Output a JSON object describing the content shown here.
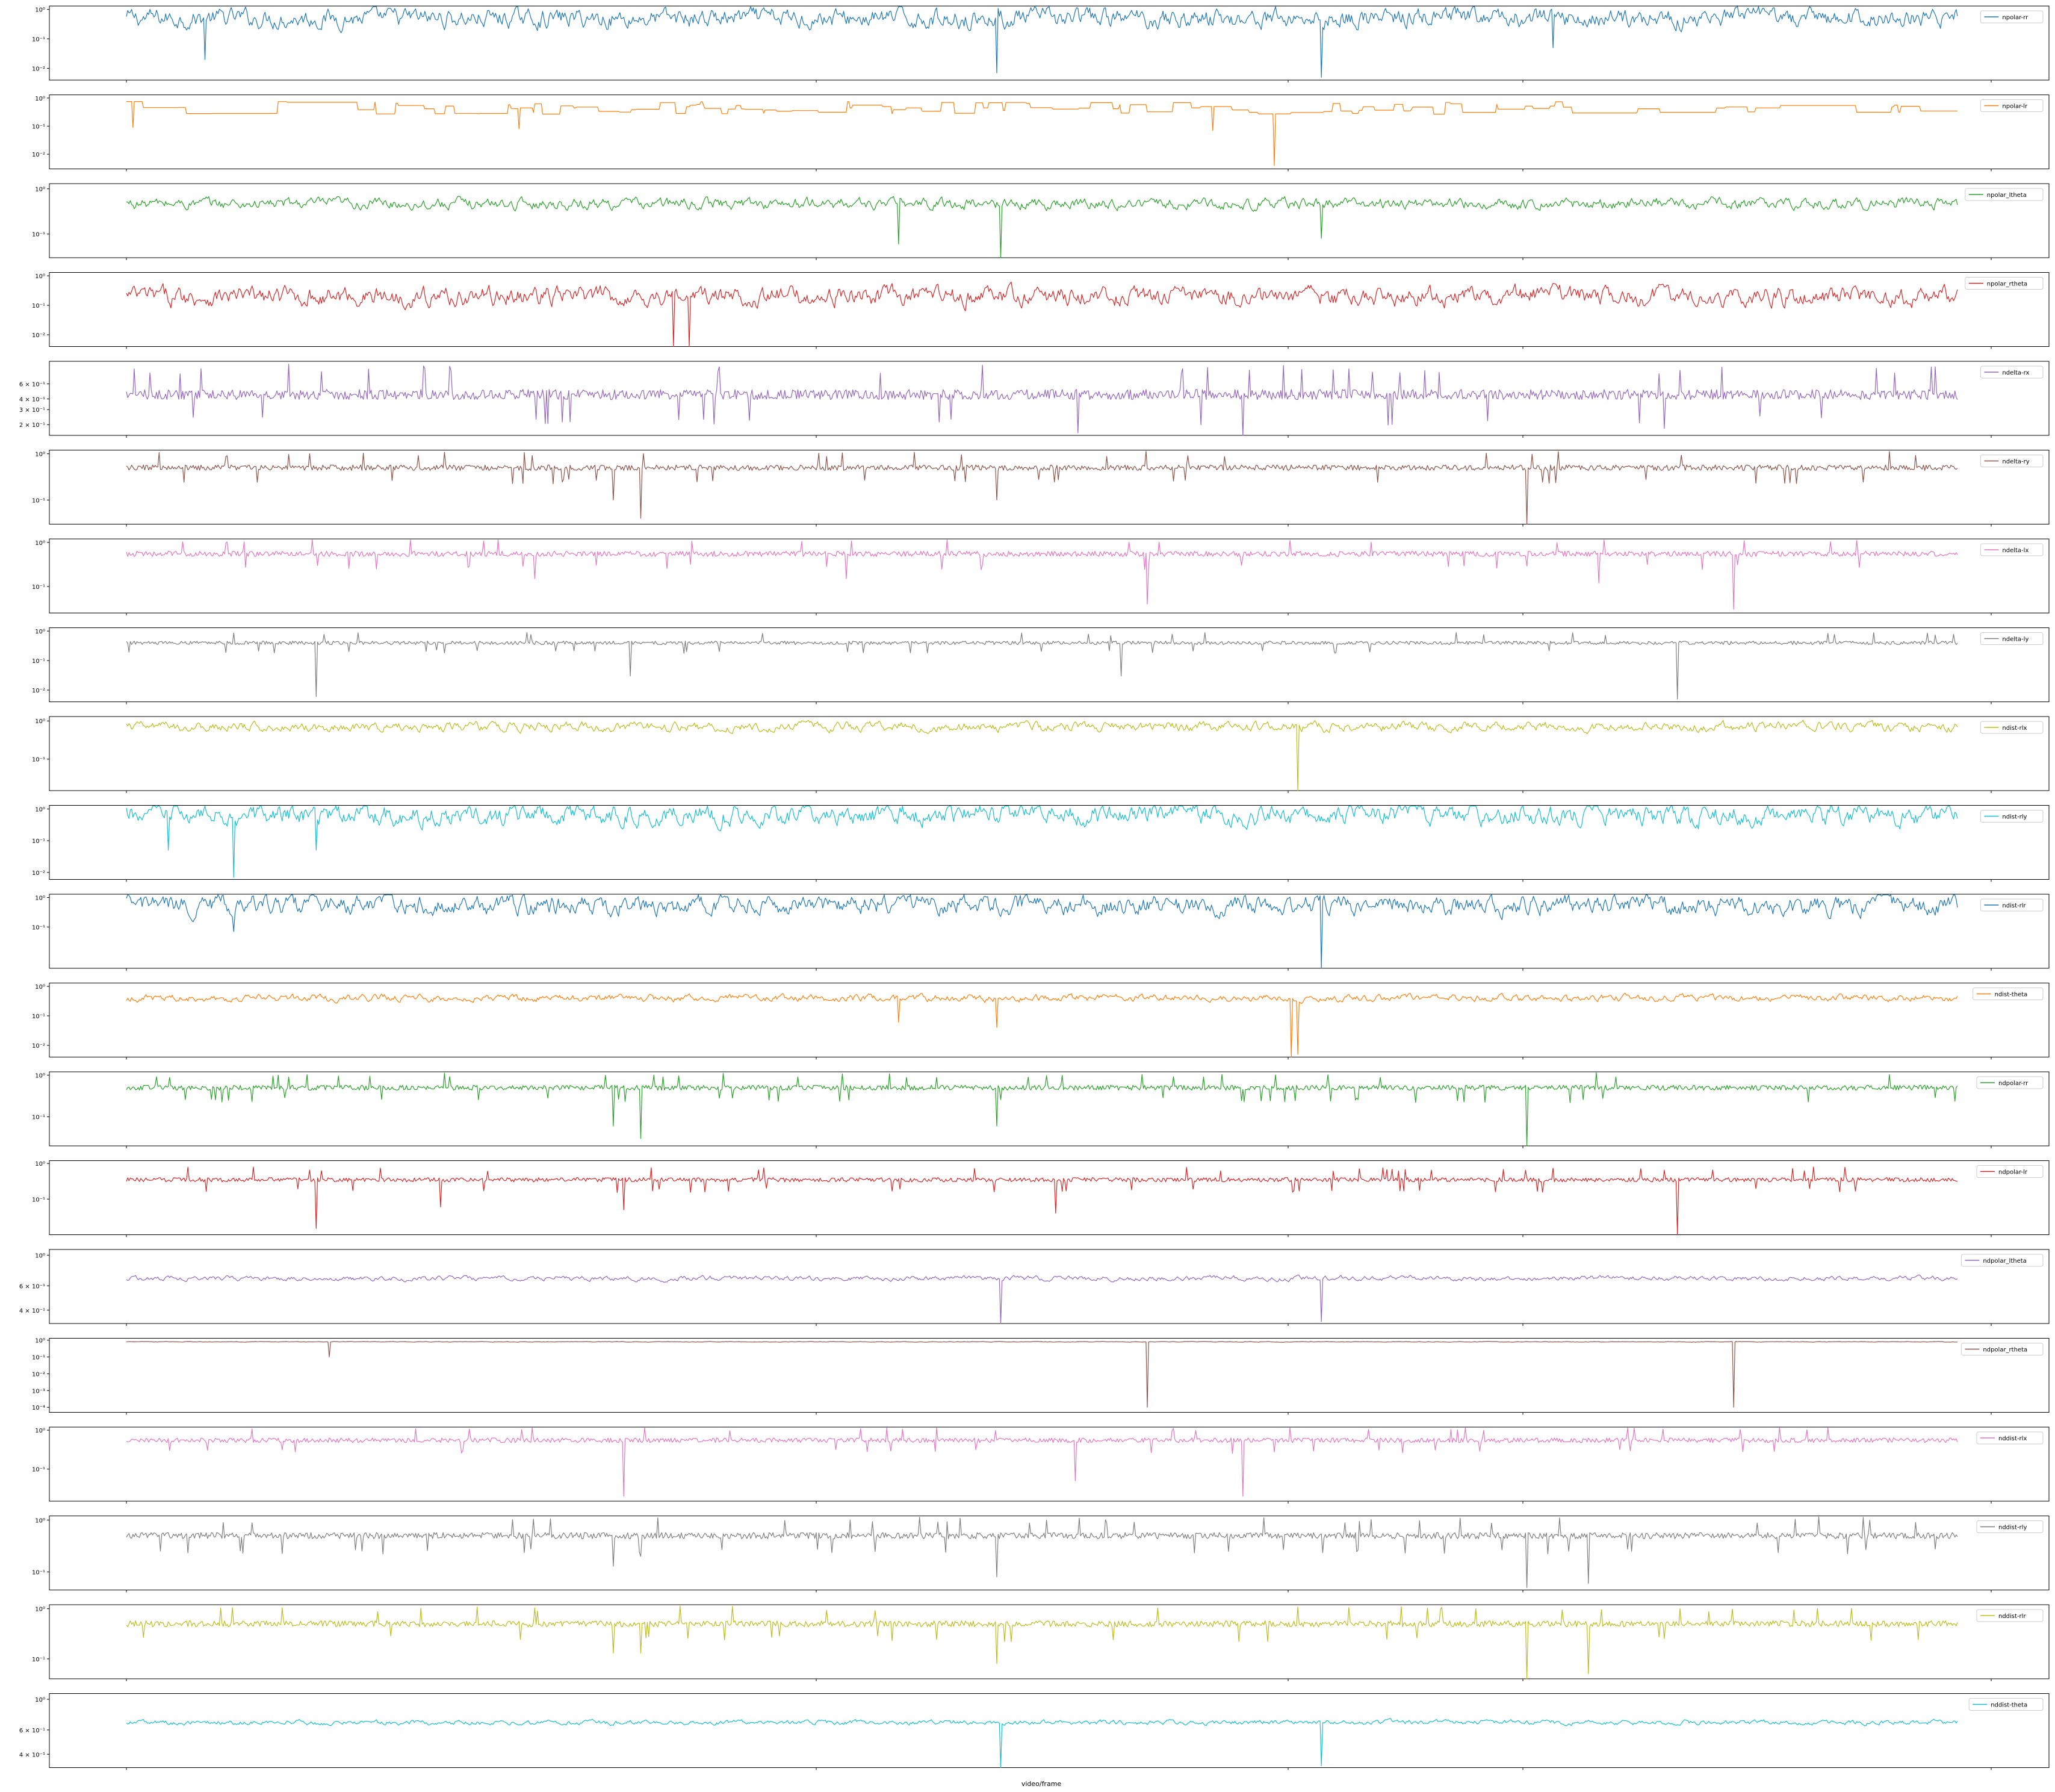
{
  "figure": {
    "xlabel": "video/frame",
    "frames": 1400,
    "scale": "log"
  },
  "chart_data": [
    {
      "type": "line",
      "series": [
        {
          "name": "npolar-rr",
          "color": "#1f77b4",
          "base": 0.5,
          "noise": "heavy",
          "dips": [
            [
              60,
              0.02
            ],
            [
              665,
              0.007
            ],
            [
              913,
              0.005
            ],
            [
              1090,
              0.05
            ]
          ]
        }
      ],
      "y_ticks": [
        "10⁰",
        "10⁻¹",
        "10⁻²"
      ],
      "y_tick_values": [
        1,
        0.1,
        0.01
      ],
      "ylim": [
        0.004,
        1.3
      ],
      "grid": false,
      "legend": "top-right"
    },
    {
      "type": "line",
      "series": [
        {
          "name": "npolar-lr",
          "color": "#ff7f0e",
          "base": 0.75,
          "noise": "step",
          "dips": [
            [
              5,
              0.09
            ],
            [
              300,
              0.08
            ],
            [
              830,
              0.07
            ],
            [
              877,
              0.004
            ]
          ]
        }
      ],
      "y_ticks": [
        "10⁰",
        "10⁻¹",
        "10⁻²"
      ],
      "y_tick_values": [
        1,
        0.1,
        0.01
      ],
      "ylim": [
        0.003,
        1.3
      ],
      "grid": false,
      "legend": "top-right"
    },
    {
      "type": "line",
      "series": [
        {
          "name": "npolar_ltheta",
          "color": "#2ca02c",
          "base": 0.47,
          "noise": "medium",
          "dips": [
            [
              590,
              0.06
            ],
            [
              668,
              0.03
            ],
            [
              913,
              0.08
            ]
          ]
        }
      ],
      "y_ticks": [
        "10⁰",
        "10⁻¹"
      ],
      "y_tick_values": [
        1,
        0.1
      ],
      "ylim": [
        0.03,
        1.3
      ],
      "grid": false,
      "legend": "top-right"
    },
    {
      "type": "line",
      "series": [
        {
          "name": "npolar_rtheta",
          "color": "#d62728",
          "base": 0.2,
          "noise": "heavy",
          "dips": [
            [
              418,
              0.004
            ],
            [
              430,
              0.004
            ]
          ]
        }
      ],
      "y_ticks": [
        "10⁰",
        "10⁻¹",
        "10⁻²"
      ],
      "y_tick_values": [
        1,
        0.1,
        0.01
      ],
      "ylim": [
        0.004,
        1.3
      ],
      "grid": false,
      "legend": "top-right"
    },
    {
      "type": "line",
      "series": [
        {
          "name": "ndelta-rx",
          "color": "#9467bd",
          "base": 0.45,
          "noise": "spiky",
          "dips": [
            [
              727,
              0.16
            ],
            [
              853,
              0.15
            ],
            [
              1175,
              0.18
            ]
          ]
        }
      ],
      "y_ticks": [
        "6 × 10⁻¹",
        "4 × 10⁻¹",
        "3 × 10⁻¹",
        "2 × 10⁻¹"
      ],
      "y_tick_values": [
        0.6,
        0.4,
        0.3,
        0.2
      ],
      "ylim": [
        0.15,
        1.1
      ],
      "grid": false,
      "legend": "top-right"
    },
    {
      "type": "line",
      "series": [
        {
          "name": "ndelta-ry",
          "color": "#8c564b",
          "base": 0.5,
          "noise": "spiky",
          "dips": [
            [
              372,
              0.1
            ],
            [
              393,
              0.04
            ],
            [
              665,
              0.1
            ],
            [
              1070,
              0.03
            ]
          ]
        }
      ],
      "y_ticks": [
        "10⁰",
        "10⁻¹"
      ],
      "y_tick_values": [
        1,
        0.1
      ],
      "ylim": [
        0.03,
        1.2
      ],
      "grid": false,
      "legend": "top-right"
    },
    {
      "type": "line",
      "series": [
        {
          "name": "ndelta-lx",
          "color": "#e377c2",
          "base": 0.55,
          "noise": "spiky",
          "dips": [
            [
              312,
              0.15
            ],
            [
              550,
              0.15
            ],
            [
              780,
              0.04
            ],
            [
              1125,
              0.12
            ],
            [
              1228,
              0.03
            ]
          ]
        }
      ],
      "y_ticks": [
        "10⁰",
        "10⁻¹"
      ],
      "y_tick_values": [
        1,
        0.1
      ],
      "ylim": [
        0.025,
        1.2
      ],
      "grid": false,
      "legend": "top-right"
    },
    {
      "type": "line",
      "series": [
        {
          "name": "ndelta-ly",
          "color": "#7f7f7f",
          "base": 0.4,
          "noise": "spiky",
          "dips": [
            [
              145,
              0.006
            ],
            [
              385,
              0.03
            ],
            [
              760,
              0.03
            ],
            [
              1185,
              0.005
            ]
          ]
        }
      ],
      "y_ticks": [
        "10⁰",
        "10⁻¹",
        "10⁻²"
      ],
      "y_tick_values": [
        1,
        0.1,
        0.01
      ],
      "ylim": [
        0.004,
        1.3
      ],
      "grid": false,
      "legend": "top-right"
    },
    {
      "type": "line",
      "series": [
        {
          "name": "ndist-rlx",
          "color": "#bcbd22",
          "base": 0.7,
          "noise": "medium",
          "dips": [
            [
              895,
              0.015
            ]
          ]
        }
      ],
      "y_ticks": [
        "10⁰",
        "10⁻¹"
      ],
      "y_tick_values": [
        1,
        0.1
      ],
      "ylim": [
        0.015,
        1.3
      ],
      "grid": false,
      "legend": "top-right"
    },
    {
      "type": "line",
      "series": [
        {
          "name": "ndist-rly",
          "color": "#17becf",
          "base": 0.65,
          "noise": "heavy",
          "dips": [
            [
              32,
              0.05
            ],
            [
              82,
              0.007
            ],
            [
              145,
              0.05
            ]
          ]
        }
      ],
      "y_ticks": [
        "10⁰",
        "10⁻¹",
        "10⁻²"
      ],
      "y_tick_values": [
        1,
        0.1,
        0.01
      ],
      "ylim": [
        0.006,
        1.3
      ],
      "grid": false,
      "legend": "top-right"
    },
    {
      "type": "line",
      "series": [
        {
          "name": "ndist-rlr",
          "color": "#1f77b4",
          "base": 0.55,
          "noise": "heavy",
          "dips": [
            [
              82,
              0.07
            ],
            [
              913,
              0.004
            ]
          ]
        }
      ],
      "y_ticks": [
        "10⁰",
        "10⁻¹"
      ],
      "y_tick_values": [
        1,
        0.1
      ],
      "ylim": [
        0.004,
        1.3
      ],
      "grid": false,
      "legend": "top-right"
    },
    {
      "type": "line",
      "series": [
        {
          "name": "ndist-theta",
          "color": "#ff7f0e",
          "base": 0.4,
          "noise": "medium",
          "dips": [
            [
              590,
              0.06
            ],
            [
              665,
              0.04
            ],
            [
              890,
              0.004
            ],
            [
              895,
              0.005
            ]
          ]
        }
      ],
      "y_ticks": [
        "10⁰",
        "10⁻¹",
        "10⁻²"
      ],
      "y_tick_values": [
        1,
        0.1,
        0.01
      ],
      "ylim": [
        0.004,
        1.3
      ],
      "grid": false,
      "legend": "top-right"
    },
    {
      "type": "line",
      "series": [
        {
          "name": "ndpolar-rr",
          "color": "#2ca02c",
          "base": 0.5,
          "noise": "spiky",
          "dips": [
            [
              372,
              0.06
            ],
            [
              393,
              0.03
            ],
            [
              665,
              0.06
            ],
            [
              1070,
              0.02
            ]
          ]
        }
      ],
      "y_ticks": [
        "10⁰",
        "10⁻¹"
      ],
      "y_tick_values": [
        1,
        0.1
      ],
      "ylim": [
        0.02,
        1.2
      ],
      "grid": false,
      "legend": "top-right"
    },
    {
      "type": "line",
      "series": [
        {
          "name": "ndpolar-lr",
          "color": "#d62728",
          "base": 0.35,
          "noise": "spiky",
          "dips": [
            [
              145,
              0.015
            ],
            [
              240,
              0.06
            ],
            [
              380,
              0.05
            ],
            [
              710,
              0.04
            ],
            [
              1185,
              0.01
            ]
          ]
        }
      ],
      "y_ticks": [
        "10⁰",
        "10⁻¹"
      ],
      "y_tick_values": [
        1,
        0.1
      ],
      "ylim": [
        0.01,
        1.2
      ],
      "grid": false,
      "legend": "top-right"
    },
    {
      "type": "line",
      "series": [
        {
          "name": "ndpolar_ltheta",
          "color": "#9467bd",
          "base": 0.68,
          "noise": "small",
          "dips": [
            [
              668,
              0.3
            ],
            [
              913,
              0.33
            ]
          ]
        }
      ],
      "y_ticks": [
        "10⁰",
        "6 × 10⁻¹",
        "4 × 10⁻¹"
      ],
      "y_tick_values": [
        1,
        0.6,
        0.4
      ],
      "ylim": [
        0.32,
        1.1
      ],
      "grid": false,
      "legend": "top-right"
    },
    {
      "type": "line",
      "series": [
        {
          "name": "ndpolar_rtheta",
          "color": "#8c564b",
          "base": 0.8,
          "noise": "small",
          "dips": [
            [
              780,
              0.0001
            ],
            [
              1228,
              0.0001
            ],
            [
              155,
              0.1
            ]
          ]
        }
      ],
      "y_ticks": [
        "10⁰",
        "10⁻¹",
        "10⁻²",
        "10⁻³",
        "10⁻⁴"
      ],
      "y_tick_values": [
        1,
        0.1,
        0.01,
        0.001,
        0.0001
      ],
      "ylim": [
        5e-05,
        1.3
      ],
      "grid": false,
      "legend": "top-right"
    },
    {
      "type": "line",
      "series": [
        {
          "name": "nddist-rlx",
          "color": "#e377c2",
          "base": 0.55,
          "noise": "spiky",
          "dips": [
            [
              380,
              0.02
            ],
            [
              853,
              0.02
            ],
            [
              725,
              0.05
            ]
          ]
        }
      ],
      "y_ticks": [
        "10⁰",
        "10⁻¹"
      ],
      "y_tick_values": [
        1,
        0.1
      ],
      "ylim": [
        0.015,
        1.2
      ],
      "grid": false,
      "legend": "top-right"
    },
    {
      "type": "line",
      "series": [
        {
          "name": "nddist-rly",
          "color": "#7f7f7f",
          "base": 0.5,
          "noise": "spiky",
          "dips": [
            [
              372,
              0.13
            ],
            [
              393,
              0.2
            ],
            [
              665,
              0.08
            ],
            [
              1070,
              0.05
            ],
            [
              1117,
              0.06
            ]
          ]
        }
      ],
      "y_ticks": [
        "10⁰",
        "10⁻¹"
      ],
      "y_tick_values": [
        1,
        0.1
      ],
      "ylim": [
        0.045,
        1.2
      ],
      "grid": false,
      "legend": "top-right"
    },
    {
      "type": "line",
      "series": [
        {
          "name": "nddist-rlr",
          "color": "#bcbd22",
          "base": 0.5,
          "noise": "spiky",
          "dips": [
            [
              372,
              0.13
            ],
            [
              393,
              0.13
            ],
            [
              665,
              0.08
            ],
            [
              1070,
              0.04
            ],
            [
              1117,
              0.05
            ]
          ]
        }
      ],
      "y_ticks": [
        "10⁰",
        "10⁻¹"
      ],
      "y_tick_values": [
        1,
        0.1
      ],
      "ylim": [
        0.04,
        1.2
      ],
      "grid": false,
      "legend": "top-right"
    },
    {
      "type": "line",
      "series": [
        {
          "name": "nddist-theta",
          "color": "#17becf",
          "base": 0.68,
          "noise": "small",
          "dips": [
            [
              668,
              0.3
            ],
            [
              913,
              0.33
            ]
          ]
        }
      ],
      "y_ticks": [
        "10⁰",
        "6 × 10⁻¹",
        "4 × 10⁻¹"
      ],
      "y_tick_values": [
        1,
        0.6,
        0.4
      ],
      "ylim": [
        0.32,
        1.1
      ],
      "grid": false,
      "legend": "top-right"
    }
  ]
}
